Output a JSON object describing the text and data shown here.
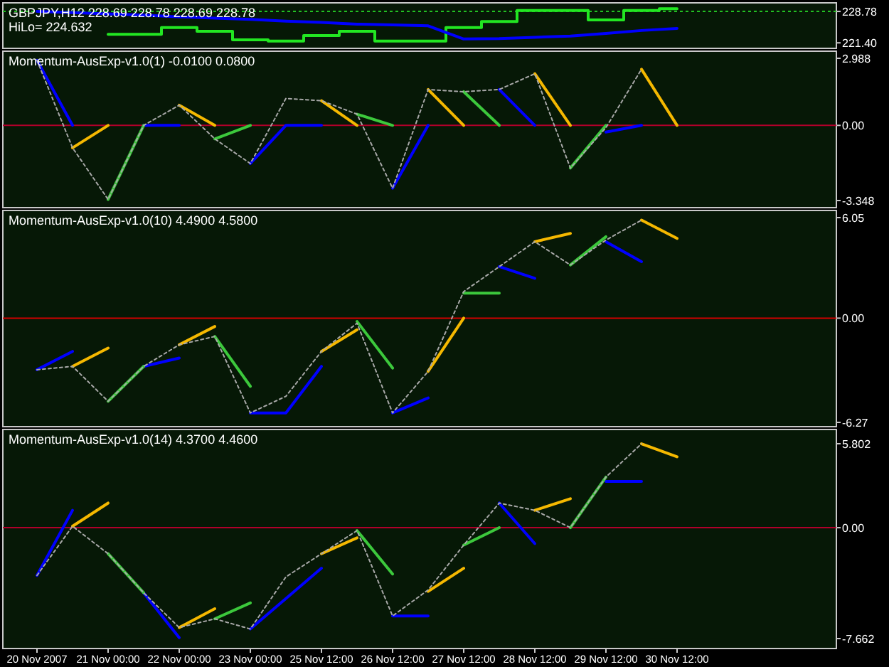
{
  "chart_data": [
    {
      "type": "line",
      "title": "GBPJPY,H12 228.69 228.78 228.69 228.78",
      "annotations": [
        "HiLo= 224.632"
      ],
      "categories": [
        null,
        null,
        null,
        null,
        null,
        null,
        null,
        null,
        null,
        null,
        null,
        null,
        null,
        null,
        null,
        null,
        null,
        null,
        null
      ],
      "ylim": [
        220.1,
        230.8
      ],
      "yticks": [
        {
          "value": 228.78,
          "label": "228.78"
        },
        {
          "value": 221.4,
          "label": "221.40"
        }
      ],
      "tick_labels": "y",
      "grid": false,
      "marker": "none",
      "line_style": "solid",
      "series": [
        {
          "type": "step",
          "color": "#22e622",
          "values": [
            null,
            null,
            223.4,
            223.4,
            225.0,
            224.1,
            222.1,
            221.8,
            223.1,
            224.1,
            221.8,
            221.8,
            225.0,
            226.4,
            229.0,
            229.0,
            226.8,
            229.0,
            229.4
          ]
        },
        {
          "color": "#0000ff",
          "values": [
            228.8,
            228.5,
            228.2,
            227.9,
            227.5,
            227.2,
            226.9,
            226.5,
            226.2,
            225.8,
            225.6,
            225.4,
            222.3,
            222.4,
            222.7,
            223.0,
            223.6,
            224.3,
            224.8
          ]
        }
      ],
      "ref_lines": [
        {
          "axis": "y",
          "value": 228.78,
          "color": "#22c022",
          "line_style": "dashed"
        }
      ]
    },
    {
      "type": "line",
      "title": "Momentum-AusExp-v1.0(1) -0.0100 0.0800",
      "categories": [
        null,
        null,
        null,
        null,
        null,
        null,
        null,
        null,
        null,
        null,
        null,
        null,
        null,
        null,
        null,
        null,
        null,
        null,
        null
      ],
      "ylim": [
        -3.665,
        3.305
      ],
      "yticks": [
        2.988,
        {
          "value": 0,
          "label": "0.00"
        },
        -3.348
      ],
      "tick_labels": "y",
      "grid": false,
      "marker": "none",
      "line_style": "solid",
      "series": [
        {
          "color": "#a8a8a8",
          "line_style": "dashed",
          "values": [
            2.9,
            -1.0,
            -3.3,
            0,
            0.9,
            -0.6,
            -1.7,
            1.2,
            1.1,
            0.5,
            -2.8,
            1.6,
            1.5,
            1.6,
            2.3,
            -1.9,
            -0.1,
            2.5,
            null
          ]
        },
        {
          "color": "#0000ff",
          "values": [
            2.9,
            0,
            null,
            0,
            0,
            null,
            -1.7,
            0,
            0,
            null,
            -2.8,
            0,
            null,
            1.6,
            0,
            null,
            -0.3,
            0,
            null
          ]
        },
        {
          "color": "#f5b800",
          "values": [
            null,
            -1.0,
            0,
            null,
            0.9,
            0,
            null,
            null,
            1.1,
            0,
            null,
            1.6,
            0,
            null,
            2.3,
            0,
            null,
            2.5,
            0
          ]
        },
        {
          "color": "#3cc83c",
          "values": [
            null,
            null,
            -3.3,
            0,
            null,
            -0.6,
            0,
            null,
            null,
            0.5,
            0,
            null,
            1.5,
            0,
            null,
            -1.9,
            0,
            null,
            null
          ]
        }
      ],
      "ref_lines": [
        {
          "axis": "y",
          "value": 0,
          "color": "#b0002a",
          "line_style": "solid"
        }
      ]
    },
    {
      "type": "line",
      "title": "Momentum-AusExp-v1.0(10) 4.4900 4.5800",
      "categories": [
        null,
        null,
        null,
        null,
        null,
        null,
        null,
        null,
        null,
        null,
        null,
        null,
        null,
        null,
        null,
        null,
        null,
        null,
        null
      ],
      "ylim": [
        -6.527,
        6.478
      ],
      "yticks": [
        6.05,
        {
          "value": 0,
          "label": "0.00"
        },
        -6.27
      ],
      "tick_labels": "y",
      "grid": false,
      "marker": "none",
      "line_style": "solid",
      "series": [
        {
          "color": "#a8a8a8",
          "line_style": "dashed",
          "values": [
            -3.1,
            -2.9,
            -5.0,
            -2.9,
            -1.6,
            -1.1,
            -5.7,
            -4.7,
            -2.0,
            -0.3,
            -5.7,
            -3.2,
            1.6,
            3.1,
            4.6,
            3.2,
            4.7,
            5.9,
            null
          ]
        },
        {
          "color": "#0000ff",
          "values": [
            -3.1,
            -2.0,
            null,
            -2.9,
            -2.4,
            null,
            -5.7,
            -5.7,
            -2.9,
            null,
            -5.7,
            -4.8,
            null,
            3.1,
            2.4,
            null,
            4.6,
            3.4,
            null
          ]
        },
        {
          "color": "#f5b800",
          "values": [
            null,
            -2.9,
            -1.8,
            null,
            -1.6,
            -0.5,
            null,
            null,
            -2.0,
            -0.7,
            null,
            -3.2,
            0,
            null,
            4.6,
            5.1,
            null,
            5.9,
            4.8
          ]
        },
        {
          "color": "#3cc83c",
          "values": [
            null,
            null,
            -5.0,
            -2.9,
            null,
            -1.1,
            -4.1,
            null,
            null,
            -0.2,
            -3.0,
            null,
            1.5,
            1.5,
            null,
            3.2,
            4.9,
            null,
            null
          ]
        }
      ],
      "ref_lines": [
        {
          "axis": "y",
          "value": 0,
          "color": "#d00000",
          "line_style": "solid"
        }
      ]
    },
    {
      "type": "line",
      "title": "Momentum-AusExp-v1.0(14) 4.3700 4.4600",
      "categories": [
        "20 Nov 2007",
        null,
        "21 Nov 00:00",
        null,
        "22 Nov 00:00",
        null,
        "23 Nov 00:00",
        null,
        "25 Nov 12:00",
        null,
        "26 Nov 12:00",
        null,
        "27 Nov 12:00",
        null,
        "28 Nov 12:00",
        null,
        "29 Nov 12:00",
        null,
        "30 Nov 12:00"
      ],
      "ylim": [
        -8.35,
        6.785
      ],
      "yticks": [
        5.802,
        {
          "value": 0,
          "label": "0.00"
        },
        -7.662
      ],
      "grid": false,
      "marker": "none",
      "line_style": "solid",
      "series": [
        {
          "color": "#a8a8a8",
          "line_style": "dashed",
          "values": [
            -3.3,
            0.1,
            -1.8,
            -4.5,
            -6.9,
            -6.3,
            -7.0,
            -3.4,
            -1.8,
            -0.2,
            -6.1,
            -4.3,
            -1.2,
            1.7,
            1.2,
            0,
            3.5,
            5.8,
            null
          ]
        },
        {
          "color": "#0000ff",
          "values": [
            -3.3,
            1.2,
            null,
            -4.5,
            -7.6,
            null,
            -7.0,
            -4.9,
            -2.8,
            null,
            -6.1,
            -6.1,
            null,
            1.7,
            -1.1,
            null,
            3.2,
            3.2,
            null
          ]
        },
        {
          "color": "#f5b800",
          "values": [
            null,
            0.1,
            1.7,
            null,
            -6.9,
            -5.6,
            null,
            null,
            -1.8,
            -0.7,
            null,
            -4.4,
            -2.8,
            null,
            1.2,
            2.0,
            null,
            5.8,
            4.9
          ]
        },
        {
          "color": "#3cc83c",
          "values": [
            null,
            null,
            -1.8,
            -4.5,
            null,
            -6.3,
            -5.2,
            null,
            null,
            -0.2,
            -3.2,
            null,
            -1.2,
            0,
            null,
            0,
            3.5,
            null,
            null
          ]
        }
      ],
      "ref_lines": [
        {
          "axis": "y",
          "value": 0,
          "color": "#b0002a",
          "line_style": "solid"
        }
      ]
    }
  ]
}
